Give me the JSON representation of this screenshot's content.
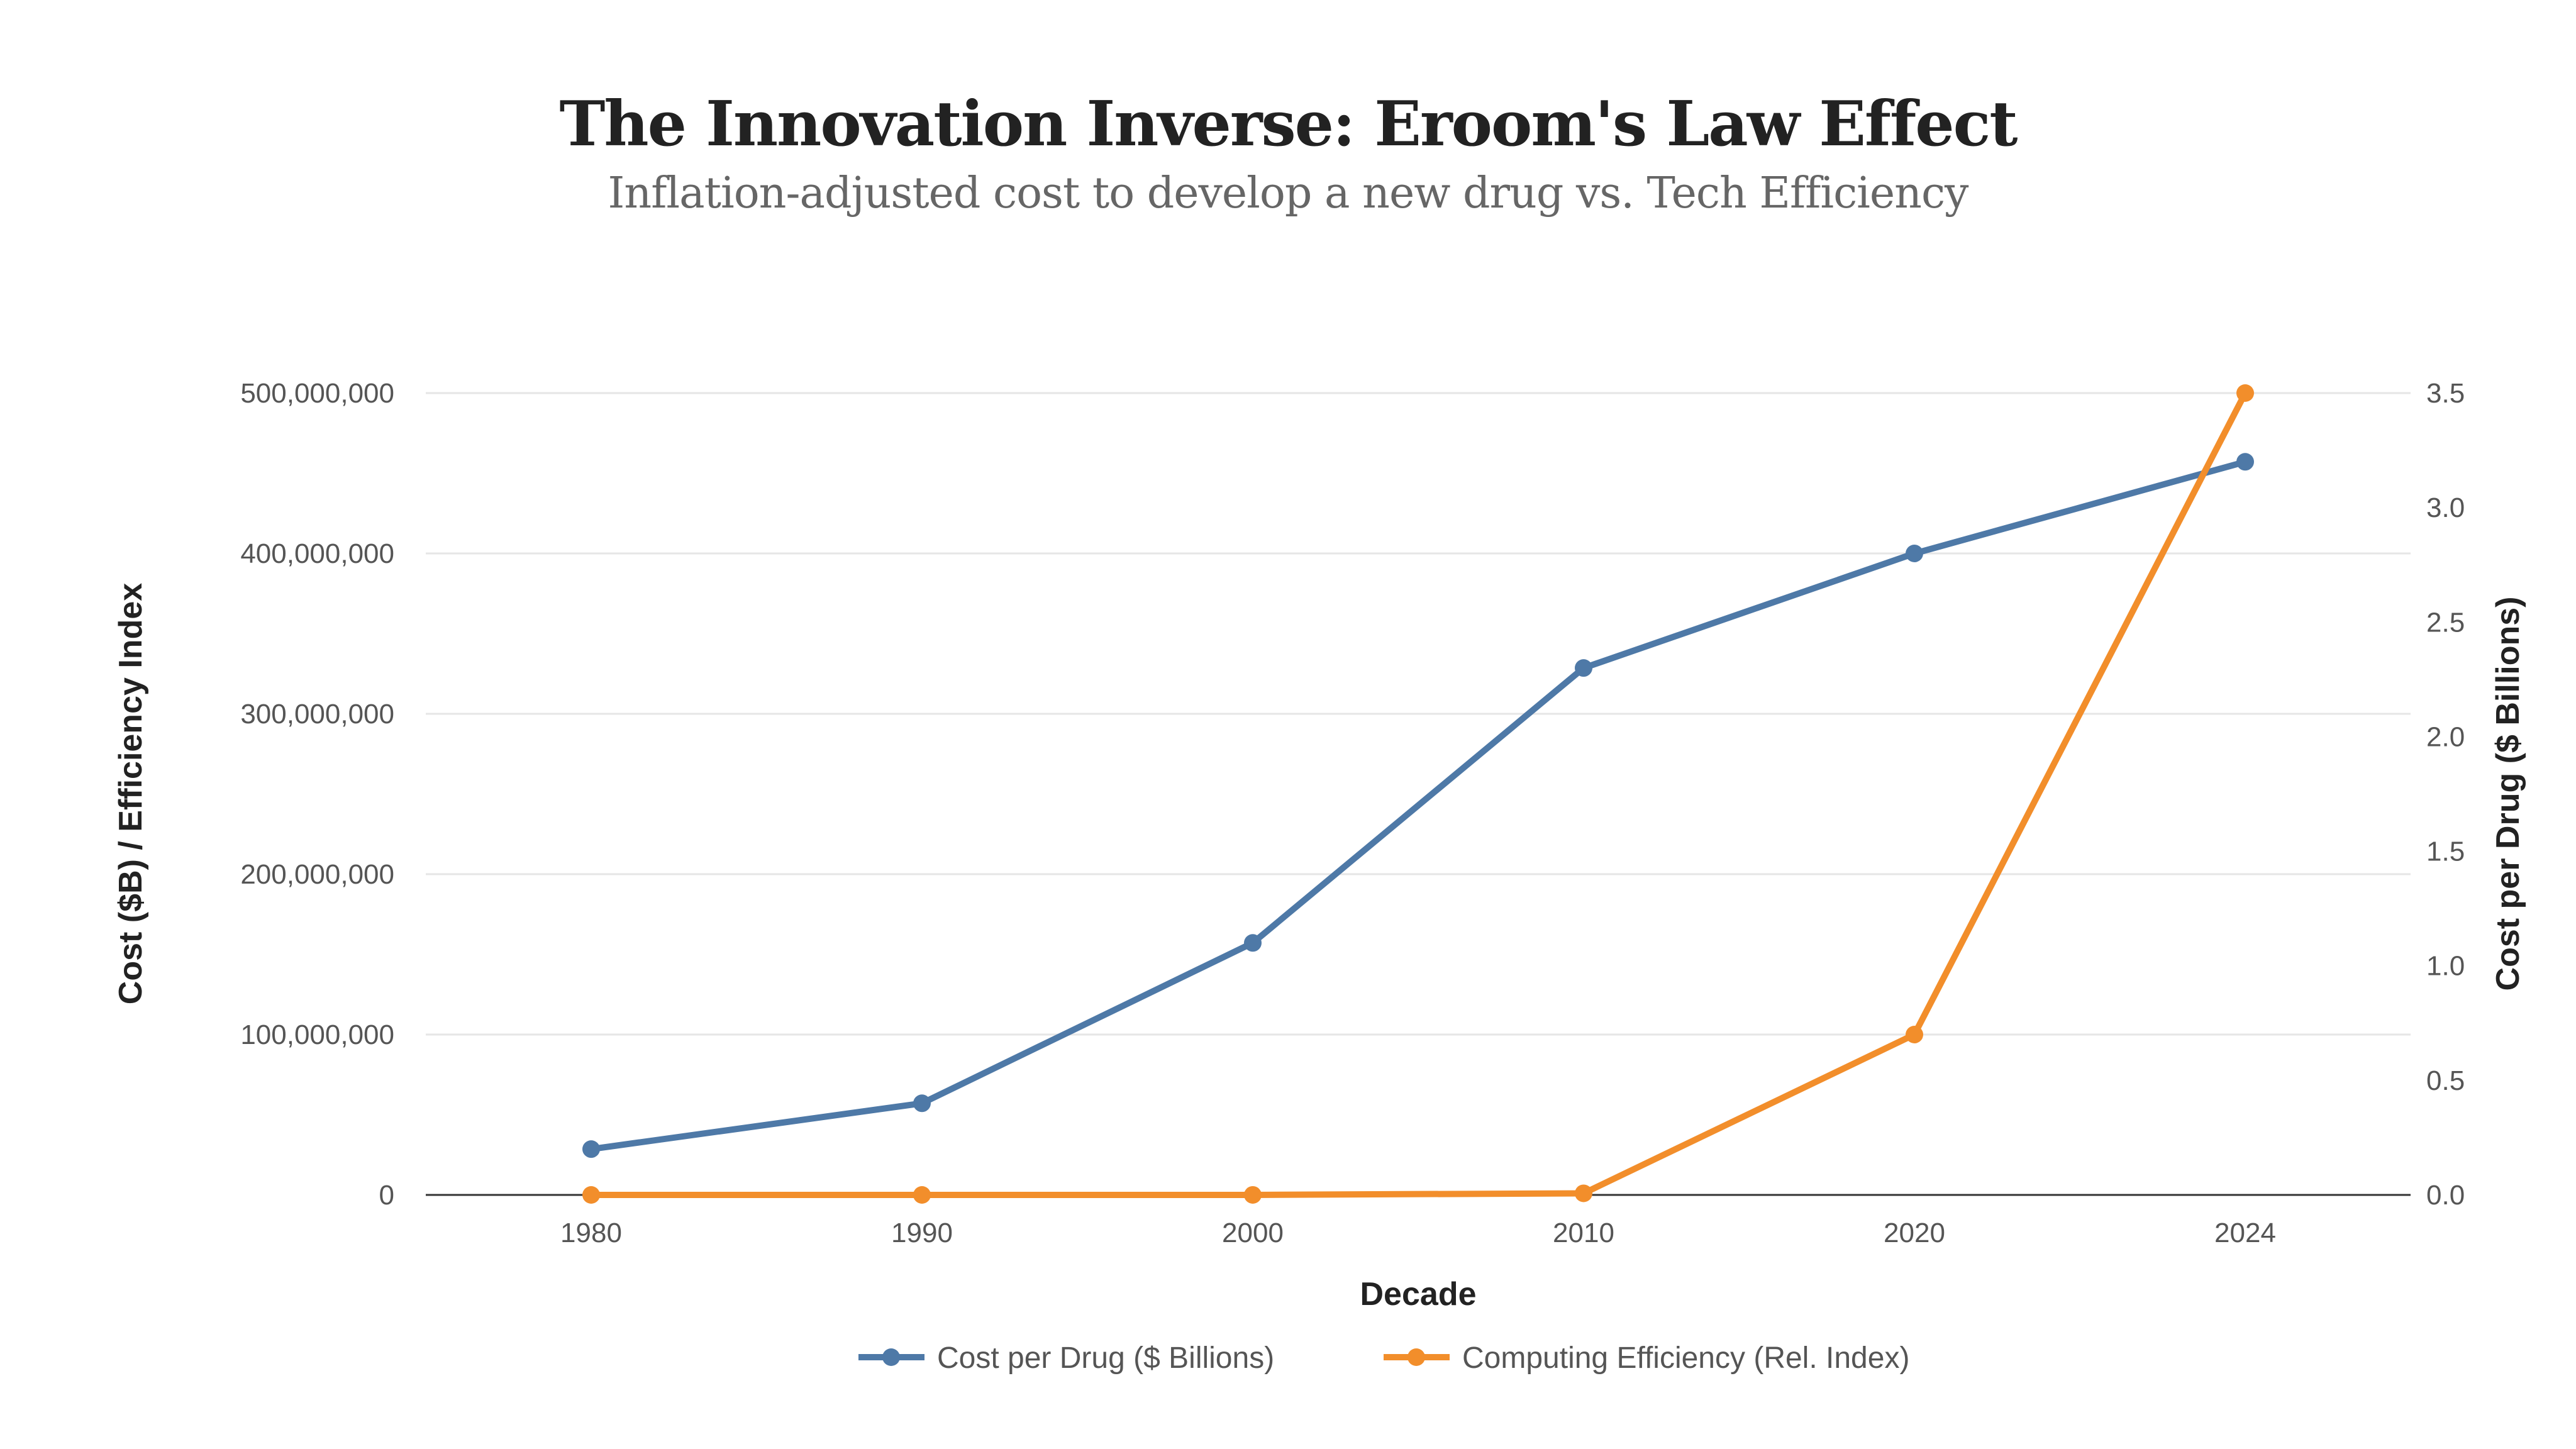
{
  "title": "The Innovation Inverse: Eroom's Law Effect",
  "subtitle": "Inflation-adjusted cost to develop a new drug vs. Tech Efficiency",
  "chart_data": {
    "type": "line",
    "title": "The Innovation Inverse: Eroom's Law Effect",
    "subtitle": "Inflation-adjusted cost to develop a new drug vs. Tech Efficiency",
    "categories": [
      "1980",
      "1990",
      "2000",
      "2010",
      "2020",
      "2024"
    ],
    "xlabel": "Decade",
    "ylabel_left": "Cost ($B) / Efficiency Index",
    "ylabel_right": "Cost per Drug ($ Billions)",
    "ylim_left": [
      0,
      500000000
    ],
    "ylim_right": [
      0,
      3.5
    ],
    "left_ticks": [
      "0",
      "100,000,000",
      "200,000,000",
      "300,000,000",
      "400,000,000",
      "500,000,000"
    ],
    "left_tick_values": [
      0,
      100000000,
      200000000,
      300000000,
      400000000,
      500000000
    ],
    "right_ticks": [
      "0.0",
      "0.5",
      "1.0",
      "1.5",
      "2.0",
      "2.5",
      "3.0",
      "3.5"
    ],
    "right_tick_values": [
      0,
      0.5,
      1,
      1.5,
      2,
      2.5,
      3,
      3.5
    ],
    "grid": true,
    "legend_position": "bottom",
    "series": [
      {
        "name": "Cost per Drug ($ Billions)",
        "axis": "right",
        "color": "#4e79a7",
        "values": [
          0.2,
          0.4,
          1.1,
          2.3,
          2.8,
          3.2
        ]
      },
      {
        "name": "Computing Efficiency (Rel. Index)",
        "axis": "left",
        "color": "#f28e2b",
        "values": [
          1,
          100,
          10000,
          1000000,
          100000000,
          500000000
        ]
      }
    ]
  }
}
